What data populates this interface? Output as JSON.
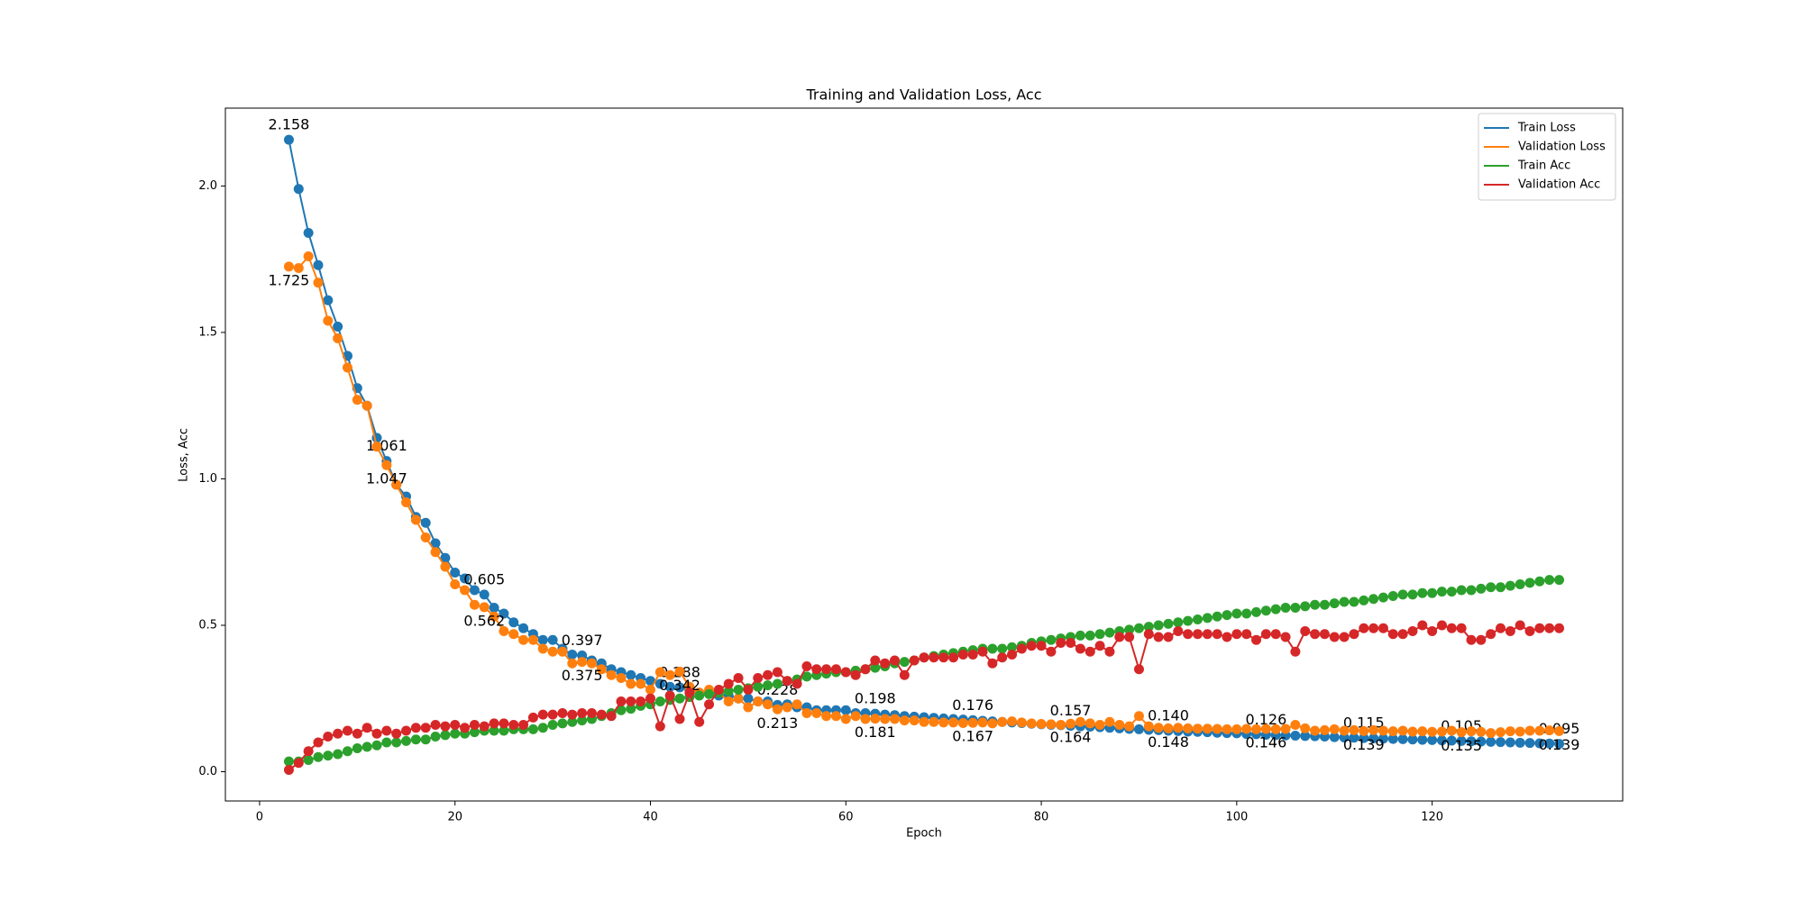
{
  "chart_data": {
    "type": "line",
    "title": "Training and Validation Loss, Acc",
    "x_label": "Epoch",
    "y_label": "Loss, Acc",
    "x": [
      3,
      4,
      5,
      6,
      7,
      8,
      9,
      10,
      11,
      12,
      13,
      14,
      15,
      16,
      17,
      18,
      19,
      20,
      21,
      22,
      23,
      24,
      25,
      26,
      27,
      28,
      29,
      30,
      31,
      32,
      33,
      34,
      35,
      36,
      37,
      38,
      39,
      40,
      41,
      42,
      43,
      44,
      45,
      46,
      47,
      48,
      49,
      50,
      51,
      52,
      53,
      54,
      55,
      56,
      57,
      58,
      59,
      60,
      61,
      62,
      63,
      64,
      65,
      66,
      67,
      68,
      69,
      70,
      71,
      72,
      73,
      74,
      75,
      76,
      77,
      78,
      79,
      80,
      81,
      82,
      83,
      84,
      85,
      86,
      87,
      88,
      89,
      90,
      91,
      92,
      93,
      94,
      95,
      96,
      97,
      98,
      99,
      100,
      101,
      102,
      103,
      104,
      105,
      106,
      107,
      108,
      109,
      110,
      111,
      112,
      113,
      114,
      115,
      116,
      117,
      118,
      119,
      120,
      121,
      122,
      123,
      124,
      125,
      126,
      127,
      128,
      129,
      130,
      131,
      132,
      133
    ],
    "series": [
      {
        "name": "Train Loss",
        "color": "#1f77b4",
        "label_side": "above",
        "values": [
          2.158,
          1.99,
          1.84,
          1.73,
          1.61,
          1.52,
          1.42,
          1.31,
          1.25,
          1.14,
          1.061,
          0.98,
          0.94,
          0.87,
          0.85,
          0.78,
          0.73,
          0.68,
          0.66,
          0.62,
          0.605,
          0.56,
          0.54,
          0.51,
          0.49,
          0.47,
          0.45,
          0.45,
          0.42,
          0.4,
          0.397,
          0.38,
          0.37,
          0.35,
          0.34,
          0.33,
          0.32,
          0.31,
          0.3,
          0.29,
          0.288,
          0.28,
          0.27,
          0.27,
          0.26,
          0.26,
          0.25,
          0.25,
          0.24,
          0.24,
          0.228,
          0.23,
          0.22,
          0.22,
          0.21,
          0.21,
          0.21,
          0.21,
          0.2,
          0.2,
          0.198,
          0.195,
          0.193,
          0.19,
          0.188,
          0.186,
          0.184,
          0.182,
          0.18,
          0.178,
          0.176,
          0.174,
          0.172,
          0.17,
          0.168,
          0.166,
          0.164,
          0.162,
          0.16,
          0.159,
          0.157,
          0.155,
          0.154,
          0.152,
          0.15,
          0.148,
          0.146,
          0.145,
          0.143,
          0.142,
          0.14,
          0.139,
          0.137,
          0.136,
          0.135,
          0.133,
          0.132,
          0.131,
          0.129,
          0.128,
          0.126,
          0.125,
          0.124,
          0.123,
          0.122,
          0.121,
          0.12,
          0.118,
          0.117,
          0.116,
          0.115,
          0.114,
          0.113,
          0.112,
          0.111,
          0.11,
          0.109,
          0.108,
          0.107,
          0.106,
          0.105,
          0.104,
          0.103,
          0.102,
          0.101,
          0.1,
          0.099,
          0.098,
          0.097,
          0.096,
          0.095
        ],
        "value_labels": [
          "2.158",
          null,
          null,
          null,
          null,
          null,
          null,
          null,
          null,
          null,
          "1.061",
          null,
          null,
          null,
          null,
          null,
          null,
          null,
          null,
          null,
          "0.605",
          null,
          null,
          null,
          null,
          null,
          null,
          null,
          null,
          null,
          "0.397",
          null,
          null,
          null,
          null,
          null,
          null,
          null,
          null,
          null,
          "0.288",
          null,
          null,
          null,
          null,
          null,
          null,
          null,
          null,
          null,
          "0.228",
          null,
          null,
          null,
          null,
          null,
          null,
          null,
          null,
          null,
          "0.198",
          null,
          null,
          null,
          null,
          null,
          null,
          null,
          null,
          null,
          "0.176",
          null,
          null,
          null,
          null,
          null,
          null,
          null,
          null,
          null,
          "0.157",
          null,
          null,
          null,
          null,
          null,
          null,
          null,
          null,
          null,
          "0.140",
          null,
          null,
          null,
          null,
          null,
          null,
          null,
          null,
          null,
          "0.126",
          null,
          null,
          null,
          null,
          null,
          null,
          null,
          null,
          null,
          "0.115",
          null,
          null,
          null,
          null,
          null,
          null,
          null,
          null,
          null,
          "0.105",
          null,
          null,
          null,
          null,
          null,
          null,
          null,
          null,
          null,
          "0.095"
        ]
      },
      {
        "name": "Validation Loss",
        "color": "#ff7f0e",
        "label_side": "below",
        "values": [
          1.725,
          1.72,
          1.76,
          1.67,
          1.54,
          1.48,
          1.38,
          1.27,
          1.25,
          1.11,
          1.047,
          0.98,
          0.92,
          0.86,
          0.8,
          0.75,
          0.7,
          0.64,
          0.62,
          0.57,
          0.562,
          0.53,
          0.48,
          0.47,
          0.45,
          0.45,
          0.42,
          0.41,
          0.41,
          0.37,
          0.375,
          0.37,
          0.35,
          0.33,
          0.32,
          0.3,
          0.3,
          0.28,
          0.34,
          0.33,
          0.342,
          0.29,
          0.27,
          0.28,
          0.27,
          0.24,
          0.25,
          0.22,
          0.24,
          0.23,
          0.213,
          0.22,
          0.23,
          0.2,
          0.2,
          0.19,
          0.19,
          0.18,
          0.19,
          0.18,
          0.181,
          0.18,
          0.18,
          0.175,
          0.175,
          0.17,
          0.17,
          0.168,
          0.168,
          0.166,
          0.167,
          0.168,
          0.165,
          0.17,
          0.172,
          0.168,
          0.165,
          0.163,
          0.162,
          0.16,
          0.164,
          0.17,
          0.165,
          0.16,
          0.17,
          0.16,
          0.155,
          0.19,
          0.155,
          0.15,
          0.148,
          0.15,
          0.148,
          0.147,
          0.147,
          0.146,
          0.145,
          0.145,
          0.146,
          0.145,
          0.146,
          0.145,
          0.146,
          0.16,
          0.148,
          0.14,
          0.142,
          0.145,
          0.14,
          0.142,
          0.139,
          0.142,
          0.14,
          0.138,
          0.14,
          0.137,
          0.138,
          0.136,
          0.137,
          0.14,
          0.135,
          0.138,
          0.136,
          0.132,
          0.135,
          0.138,
          0.137,
          0.14,
          0.14,
          0.141,
          0.139
        ],
        "value_labels": [
          "1.725",
          null,
          null,
          null,
          null,
          null,
          null,
          null,
          null,
          null,
          "1.047",
          null,
          null,
          null,
          null,
          null,
          null,
          null,
          null,
          null,
          "0.562",
          null,
          null,
          null,
          null,
          null,
          null,
          null,
          null,
          null,
          "0.375",
          null,
          null,
          null,
          null,
          null,
          null,
          null,
          null,
          null,
          "0.342",
          null,
          null,
          null,
          null,
          null,
          null,
          null,
          null,
          null,
          "0.213",
          null,
          null,
          null,
          null,
          null,
          null,
          null,
          null,
          null,
          "0.181",
          null,
          null,
          null,
          null,
          null,
          null,
          null,
          null,
          null,
          "0.167",
          null,
          null,
          null,
          null,
          null,
          null,
          null,
          null,
          null,
          "0.164",
          null,
          null,
          null,
          null,
          null,
          null,
          null,
          null,
          null,
          "0.148",
          null,
          null,
          null,
          null,
          null,
          null,
          null,
          null,
          null,
          "0.146",
          null,
          null,
          null,
          null,
          null,
          null,
          null,
          null,
          null,
          "0.139",
          null,
          null,
          null,
          null,
          null,
          null,
          null,
          null,
          null,
          "0.135",
          null,
          null,
          null,
          null,
          null,
          null,
          null,
          null,
          null,
          "0.139"
        ]
      },
      {
        "name": "Train Acc",
        "color": "#2ca02c",
        "values": [
          0.035,
          0.035,
          0.04,
          0.05,
          0.055,
          0.06,
          0.07,
          0.08,
          0.085,
          0.09,
          0.1,
          0.1,
          0.105,
          0.11,
          0.11,
          0.12,
          0.125,
          0.13,
          0.13,
          0.135,
          0.14,
          0.14,
          0.14,
          0.145,
          0.145,
          0.145,
          0.15,
          0.16,
          0.165,
          0.17,
          0.175,
          0.18,
          0.19,
          0.2,
          0.21,
          0.215,
          0.225,
          0.23,
          0.24,
          0.245,
          0.25,
          0.255,
          0.26,
          0.265,
          0.27,
          0.275,
          0.28,
          0.285,
          0.29,
          0.295,
          0.3,
          0.31,
          0.315,
          0.325,
          0.33,
          0.335,
          0.34,
          0.34,
          0.345,
          0.35,
          0.355,
          0.36,
          0.37,
          0.375,
          0.38,
          0.39,
          0.395,
          0.4,
          0.405,
          0.41,
          0.415,
          0.42,
          0.42,
          0.42,
          0.425,
          0.43,
          0.44,
          0.445,
          0.45,
          0.455,
          0.46,
          0.465,
          0.465,
          0.47,
          0.475,
          0.48,
          0.485,
          0.49,
          0.495,
          0.5,
          0.505,
          0.51,
          0.515,
          0.52,
          0.525,
          0.53,
          0.535,
          0.54,
          0.54,
          0.545,
          0.55,
          0.555,
          0.56,
          0.56,
          0.565,
          0.57,
          0.57,
          0.575,
          0.58,
          0.58,
          0.585,
          0.59,
          0.595,
          0.6,
          0.605,
          0.605,
          0.61,
          0.61,
          0.615,
          0.615,
          0.62,
          0.62,
          0.625,
          0.63,
          0.63,
          0.635,
          0.64,
          0.645,
          0.65,
          0.655,
          0.655
        ]
      },
      {
        "name": "Validation Acc",
        "color": "#d62728",
        "values": [
          0.006,
          0.03,
          0.07,
          0.1,
          0.12,
          0.13,
          0.14,
          0.13,
          0.15,
          0.13,
          0.14,
          0.13,
          0.14,
          0.15,
          0.15,
          0.16,
          0.155,
          0.16,
          0.15,
          0.16,
          0.155,
          0.165,
          0.165,
          0.16,
          0.16,
          0.185,
          0.195,
          0.195,
          0.2,
          0.195,
          0.2,
          0.2,
          0.195,
          0.19,
          0.24,
          0.24,
          0.24,
          0.25,
          0.155,
          0.26,
          0.18,
          0.27,
          0.17,
          0.23,
          0.28,
          0.3,
          0.32,
          0.28,
          0.32,
          0.33,
          0.34,
          0.31,
          0.3,
          0.36,
          0.35,
          0.35,
          0.35,
          0.34,
          0.33,
          0.35,
          0.38,
          0.37,
          0.38,
          0.33,
          0.38,
          0.39,
          0.39,
          0.39,
          0.39,
          0.4,
          0.4,
          0.41,
          0.37,
          0.39,
          0.4,
          0.42,
          0.43,
          0.43,
          0.41,
          0.44,
          0.44,
          0.42,
          0.41,
          0.43,
          0.41,
          0.46,
          0.46,
          0.35,
          0.47,
          0.46,
          0.46,
          0.48,
          0.47,
          0.47,
          0.47,
          0.47,
          0.46,
          0.47,
          0.47,
          0.45,
          0.47,
          0.47,
          0.46,
          0.41,
          0.48,
          0.47,
          0.47,
          0.46,
          0.46,
          0.47,
          0.49,
          0.49,
          0.49,
          0.47,
          0.47,
          0.48,
          0.5,
          0.48,
          0.5,
          0.49,
          0.49,
          0.45,
          0.45,
          0.47,
          0.49,
          0.48,
          0.5,
          0.48,
          0.49,
          0.49,
          0.49
        ]
      }
    ],
    "xlim": [
      -3.5,
      139.5
    ],
    "xticks": [
      0,
      20,
      40,
      60,
      80,
      100,
      120
    ],
    "ylim": [
      -0.1,
      2.266
    ],
    "yticks": [
      {
        "value": 0,
        "label": "0.0"
      },
      0.5,
      {
        "value": 1,
        "label": "1.0"
      },
      1.5,
      {
        "value": 2,
        "label": "2.0"
      }
    ],
    "markers": true,
    "legend": "upper right",
    "grid": false
  }
}
